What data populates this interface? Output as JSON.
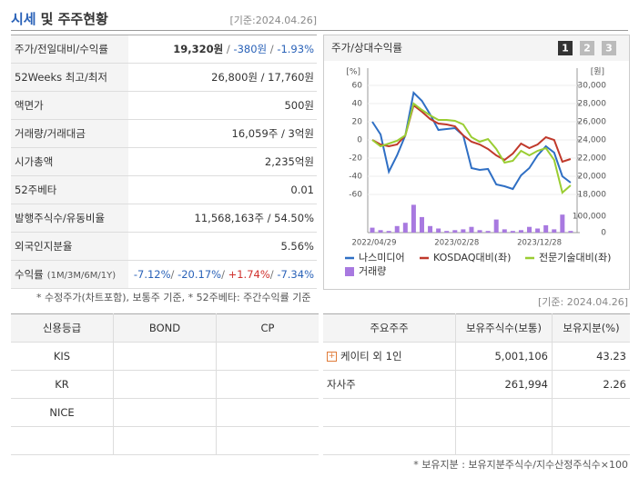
{
  "header": {
    "title_highlight": "시세",
    "title": "및 주주현황",
    "date": "[기준:2024.04.26]"
  },
  "summary_table": {
    "rows": [
      {
        "label": "주가/전일대비/수익률",
        "value": [
          "19,320원",
          " / ",
          "-380원",
          " / ",
          "-1.93%"
        ]
      },
      {
        "label": "52Weeks 최고/최저",
        "value": "26,800원 / 17,760원"
      },
      {
        "label": "액면가",
        "value": "500원"
      },
      {
        "label": "거래량/거래대금",
        "value": "16,059주 / 3억원"
      },
      {
        "label": "시가총액",
        "value": "2,235억원"
      },
      {
        "label": "52주베타",
        "value": "0.01"
      },
      {
        "label": "발행주식수/유동비율",
        "value": "11,568,163주 / 54.50%"
      },
      {
        "label": "외국인지분율",
        "value": "5.56%"
      },
      {
        "label": "수익률",
        "sublabel": "(1M/3M/6M/1Y)",
        "value": [
          "-7.12%",
          "/ ",
          "-20.17%",
          "/ ",
          "+1.74%",
          "/ ",
          "-7.34%"
        ]
      }
    ]
  },
  "summary_note": "* 수정주가(차트포함), 보통주 기준, * 52주베타: 주간수익률 기준",
  "chart_panel": {
    "title": "주가/상대수익률",
    "buttons": [
      "1",
      "2",
      "3"
    ]
  },
  "chart_data": {
    "type": "line",
    "categories": [
      "2022/04/29",
      null,
      null,
      null,
      null,
      null,
      null,
      null,
      null,
      null,
      "2023/02/28",
      null,
      null,
      null,
      null,
      null,
      null,
      null,
      null,
      null,
      "2023/12/28",
      null,
      null,
      null,
      null
    ],
    "y_unit": "[%]",
    "ylim": [
      -60,
      60
    ],
    "yticks": [
      60,
      40,
      20,
      0,
      -20,
      -40,
      -60
    ],
    "y2_unit": "[원]",
    "y2lim": [
      18000,
      30000
    ],
    "y2ticks": [
      {
        "value": 30000,
        "label": "30,000"
      },
      {
        "value": 28000,
        "label": "28,000"
      },
      {
        "value": 26000,
        "label": "26,000"
      },
      {
        "value": 24000,
        "label": "24,000"
      },
      {
        "value": 22000,
        "label": "22,000"
      },
      {
        "value": 20000,
        "label": "20,000"
      },
      {
        "value": 18000,
        "label": "18,000"
      }
    ],
    "y3lim": [
      0,
      100000
    ],
    "y3ticks": [
      {
        "value": 100000,
        "label": "100,000"
      },
      0
    ],
    "series": [
      {
        "name": "나스미디어",
        "color": "#2f6fc4",
        "axis": "y2",
        "values": [
          26000,
          24600,
          20500,
          22300,
          24500,
          29200,
          28300,
          26800,
          25100,
          25200,
          25300,
          24500,
          20900,
          20700,
          20800,
          19100,
          18900,
          18600,
          20100,
          20900,
          22300,
          23300,
          22600,
          20000,
          19300
        ]
      },
      {
        "name": "KOSDAQ대비(좌)",
        "color": "#c0392b",
        "values": [
          0,
          -5,
          -7,
          -5,
          5,
          38,
          31,
          23,
          18,
          17,
          15,
          5,
          -2,
          -5,
          -10,
          -17,
          -22,
          -15,
          -4,
          -9,
          -5,
          3,
          0,
          -24,
          -21
        ]
      },
      {
        "name": "전문기술대비(좌)",
        "color": "#9acd32",
        "values": [
          0,
          -7,
          -4,
          -1,
          5,
          40,
          33,
          27,
          22,
          22,
          21,
          17,
          3,
          -2,
          1,
          -10,
          -25,
          -23,
          -12,
          -17,
          -12,
          -9,
          -22,
          -58,
          -50
        ]
      },
      {
        "name": "거래량",
        "color": "#a879e0",
        "type": "bar",
        "axis": "y3",
        "values": [
          30000,
          15000,
          10000,
          40000,
          60000,
          170000,
          95000,
          40000,
          25000,
          10000,
          15000,
          20000,
          35000,
          15000,
          10000,
          80000,
          20000,
          10000,
          15000,
          35000,
          25000,
          45000,
          20000,
          110000,
          10000
        ]
      }
    ]
  },
  "chart_date": "[기준: 2024.04.26]",
  "credit_table": {
    "header": [
      "신용등급",
      "BOND",
      "CP"
    ],
    "rows": [
      [
        "KIS"
      ],
      [
        "KR"
      ],
      [
        "NICE"
      ],
      []
    ]
  },
  "shareholder_table": {
    "header": [
      "주요주주",
      "보유주식수(보통)",
      "보유지분(%)"
    ],
    "rows": [
      [
        "케이티 외 1인",
        "5,001,106",
        "43.23"
      ],
      [
        "자사주",
        "261,994",
        "2.26"
      ],
      [],
      []
    ]
  },
  "shareholder_note": "* 보유지분 : 보유지분주식수/지수산정주식수×100"
}
